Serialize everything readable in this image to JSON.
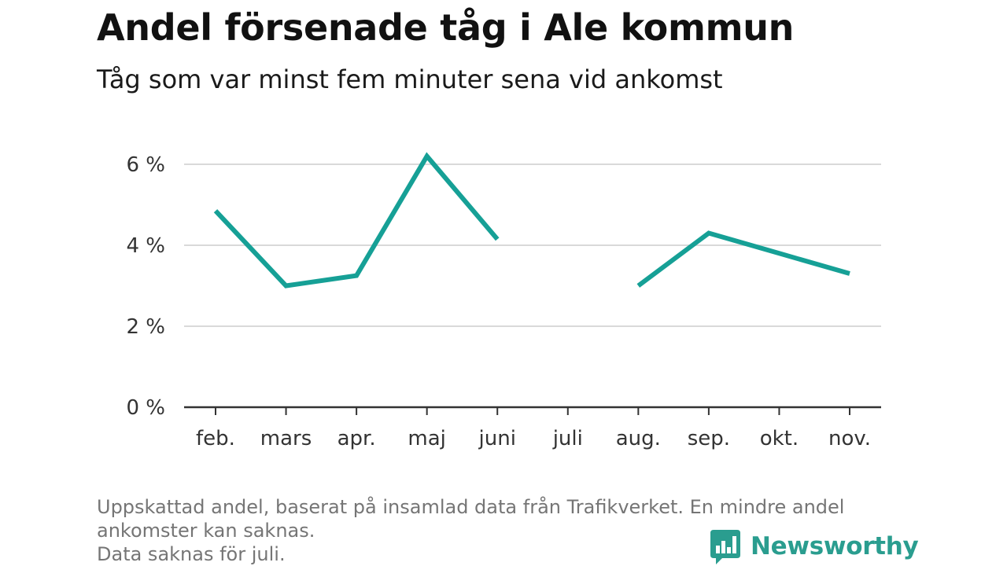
{
  "header": {
    "title": "Andel försenade tåg i Ale kommun",
    "subtitle": "Tåg som var minst fem minuter sena vid ankomst"
  },
  "chart_data": {
    "type": "line",
    "title": "Andel försenade tåg i Ale kommun",
    "subtitle": "Tåg som var minst fem minuter sena vid ankomst",
    "categories": [
      "feb.",
      "mars",
      "apr.",
      "maj",
      "juni",
      "juli",
      "aug.",
      "sep.",
      "okt.",
      "nov."
    ],
    "series": [
      {
        "values": [
          4.85,
          3.0,
          3.25,
          6.2,
          4.15,
          null,
          3.0,
          4.3,
          3.8,
          3.3
        ]
      }
    ],
    "y_ticks": [
      0,
      2,
      4,
      6
    ],
    "y_tick_labels": [
      "0 %",
      "2 %",
      "4 %",
      "6 %"
    ],
    "ylim": [
      0,
      6.2
    ],
    "grid": true,
    "line_color": "#16a096"
  },
  "footnote": {
    "line1": "Uppskattad andel, baserat på insamlad data från Trafikverket. En mindre andel",
    "line2": "ankomster kan saknas.",
    "line3": "Data saknas för juli."
  },
  "brand": {
    "name": "Newsworthy",
    "logo_icon": "bar-chart-speech-bubble-icon",
    "color": "#2a9d8f"
  }
}
